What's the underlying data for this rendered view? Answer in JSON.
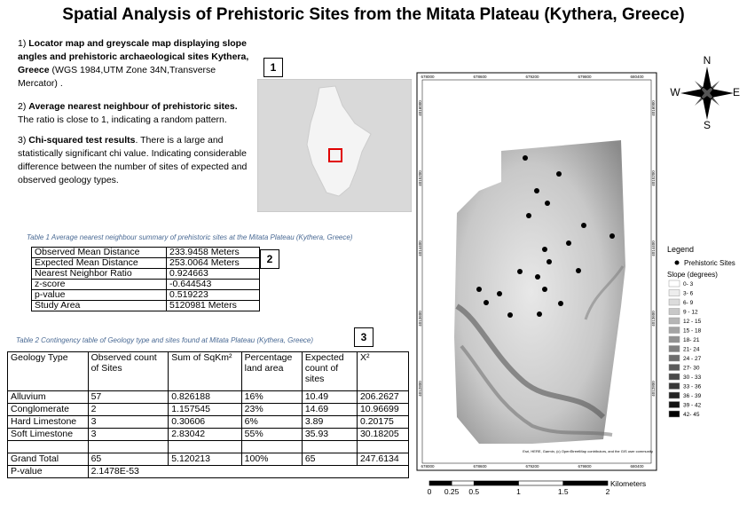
{
  "title": "Spatial Analysis of Prehistoric Sites from the Mitata Plateau (Kythera, Greece)",
  "notes": [
    {
      "number": "1)",
      "bold": "Locator map and greyscale map displaying slope angles and prehistoric archaeological sites Kythera, Greece",
      "text": " (WGS 1984,UTM Zone 34N,Transverse Mercator) ."
    },
    {
      "number": "2)",
      "bold": "Average nearest neighbour of prehistoric sites.",
      "text": " The ratio is close to 1, indicating a random pattern."
    },
    {
      "number": "3)",
      "bold": "Chi-squared test results",
      "text": ". There is a large and statistically significant chi value. Indicating considerable difference between the number of sites of expected and observed geology types."
    }
  ],
  "figure_numbers": [
    "1",
    "2",
    "3"
  ],
  "table1": {
    "caption": "Table 1 Average nearest neighbour summary of prehistoric sites at the Mitata Plateau (Kythera, Greece)",
    "rows": [
      [
        "Observed Mean Distance",
        "233.9458 Meters"
      ],
      [
        "Expected Mean Distance",
        "253.0064 Meters"
      ],
      [
        "Nearest Neighbor Ratio",
        "0.924663"
      ],
      [
        "z-score",
        "-0.644543"
      ],
      [
        "p-value",
        "0.519223"
      ],
      [
        "Study Area",
        "5120981  Meters"
      ]
    ]
  },
  "table2": {
    "caption": "Table 2 Contingency table of Geology type and sites found at Mitata Plateau (Kythera, Greece)",
    "header": [
      "Geology Type",
      "Observed count of Sites",
      "Sum of SqKm²",
      "Percentage land area",
      "Expected count of sites",
      "X²"
    ],
    "rows": [
      [
        "Alluvium",
        "57",
        "0.826188",
        "16%",
        "10.49",
        "206.2627"
      ],
      [
        "Conglomerate",
        "2",
        "1.157545",
        "23%",
        "14.69",
        "10.96699"
      ],
      [
        "Hard Limestone",
        "3",
        "0.30606",
        "6%",
        "3.89",
        "0.20175"
      ],
      [
        "Soft Limestone",
        "3",
        "2.83042",
        "55%",
        "35.93",
        "30.18205"
      ]
    ],
    "total": [
      "Grand Total",
      "65",
      "5.120213",
      "100%",
      "65",
      "247.6134"
    ],
    "pvalue": [
      "P-value",
      "2.1478E-53"
    ]
  },
  "map": {
    "x_coords": [
      "678000",
      "678600",
      "679200",
      "679800",
      "680400"
    ],
    "y_coords": [
      "4016000",
      "4015200",
      "4014400",
      "4013600",
      "4012800"
    ],
    "attribution": "Esri, HERE, Garmin, (c) OpenStreetMap contributors, and the GIS user community",
    "compass": [
      "N",
      "E",
      "S",
      "W"
    ],
    "legend": {
      "title": "Legend",
      "sites": "Prehistoric Sites",
      "slope_title": "Slope (degrees)",
      "classes": [
        "0- 3",
        "3- 6",
        "6- 9",
        "9 - 12",
        "12 - 15",
        "15 - 18",
        "18- 21",
        "21- 24",
        "24 - 27",
        "27- 30",
        "30 - 33",
        "33 - 36",
        "36 - 39",
        "39 - 42",
        "42- 45"
      ]
    },
    "scale": {
      "ticks": [
        0,
        0.25,
        0.5,
        1,
        1.5,
        2
      ],
      "unit": "Kilometers"
    }
  }
}
